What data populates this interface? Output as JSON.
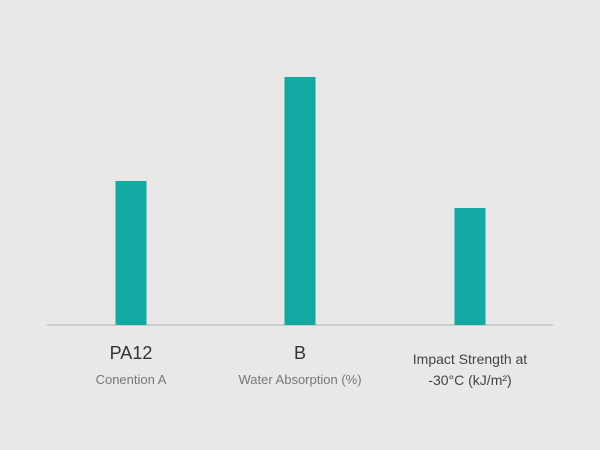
{
  "chart_data": {
    "type": "bar",
    "categories": [
      "PA12",
      "B",
      "Impact Strength at -30°C (kJ/m²)"
    ],
    "subtitles": [
      "Conention A",
      "Water Absorption (%)",
      null
    ],
    "values": [
      144,
      248,
      117
    ],
    "color": "#14a8a3"
  }
}
